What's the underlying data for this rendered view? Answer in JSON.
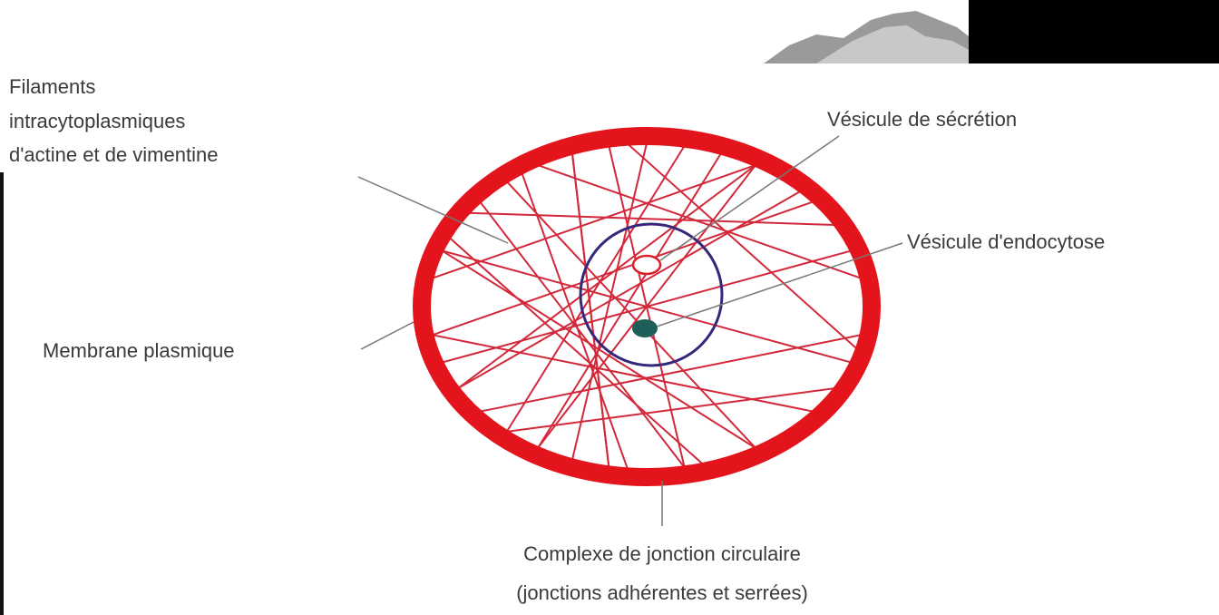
{
  "labels": {
    "filaments": [
      "Filaments",
      "intracytoplasmiques",
      "d'actine et de vimentine"
    ],
    "secretion": "Vésicule de sécrétion",
    "endocytose": "Vésicule d'endocytose",
    "membrane": "Membrane plasmique",
    "complexe": [
      "Complexe de jonction circulaire",
      "(jonctions adhérentes et serrées)"
    ]
  }
}
